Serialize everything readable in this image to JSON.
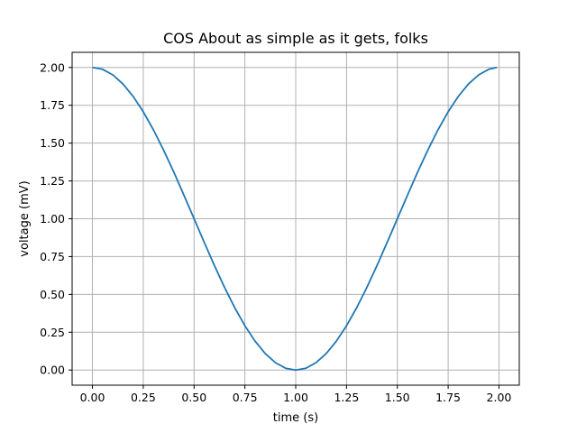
{
  "chart_data": {
    "type": "line",
    "title": "COS About as simple as it gets, folks",
    "xlabel": "time (s)",
    "ylabel": "voltage (mV)",
    "xlim": [
      -0.1,
      2.1
    ],
    "ylim": [
      -0.1,
      2.1
    ],
    "x_ticks": [
      0.0,
      0.25,
      0.5,
      0.75,
      1.0,
      1.25,
      1.5,
      1.75,
      2.0
    ],
    "x_tick_labels": [
      "0.00",
      "0.25",
      "0.50",
      "0.75",
      "1.00",
      "1.25",
      "1.50",
      "1.75",
      "2.00"
    ],
    "y_ticks": [
      0.0,
      0.25,
      0.5,
      0.75,
      1.0,
      1.25,
      1.5,
      1.75,
      2.0
    ],
    "y_tick_labels": [
      "0.00",
      "0.25",
      "0.50",
      "0.75",
      "1.00",
      "1.25",
      "1.50",
      "1.75",
      "2.00"
    ],
    "grid": true,
    "series": [
      {
        "color": "#1f77b4",
        "x": [
          0.0,
          0.05,
          0.1,
          0.15,
          0.2,
          0.25,
          0.3,
          0.35,
          0.4,
          0.45,
          0.5,
          0.55,
          0.6,
          0.65,
          0.7,
          0.75,
          0.8,
          0.85,
          0.9,
          0.95,
          1.0,
          1.05,
          1.1,
          1.15,
          1.2,
          1.25,
          1.3,
          1.35,
          1.4,
          1.45,
          1.5,
          1.55,
          1.6,
          1.65,
          1.7,
          1.75,
          1.8,
          1.85,
          1.9,
          1.95,
          1.99
        ],
        "y": [
          2.0,
          1.988,
          1.951,
          1.891,
          1.809,
          1.707,
          1.588,
          1.454,
          1.309,
          1.156,
          1.0,
          0.844,
          0.691,
          0.546,
          0.412,
          0.293,
          0.191,
          0.109,
          0.049,
          0.012,
          0.0,
          0.012,
          0.049,
          0.109,
          0.191,
          0.293,
          0.412,
          0.546,
          0.691,
          0.844,
          1.0,
          1.156,
          1.309,
          1.454,
          1.588,
          1.707,
          1.809,
          1.891,
          1.951,
          1.988,
          2.0
        ]
      }
    ]
  }
}
